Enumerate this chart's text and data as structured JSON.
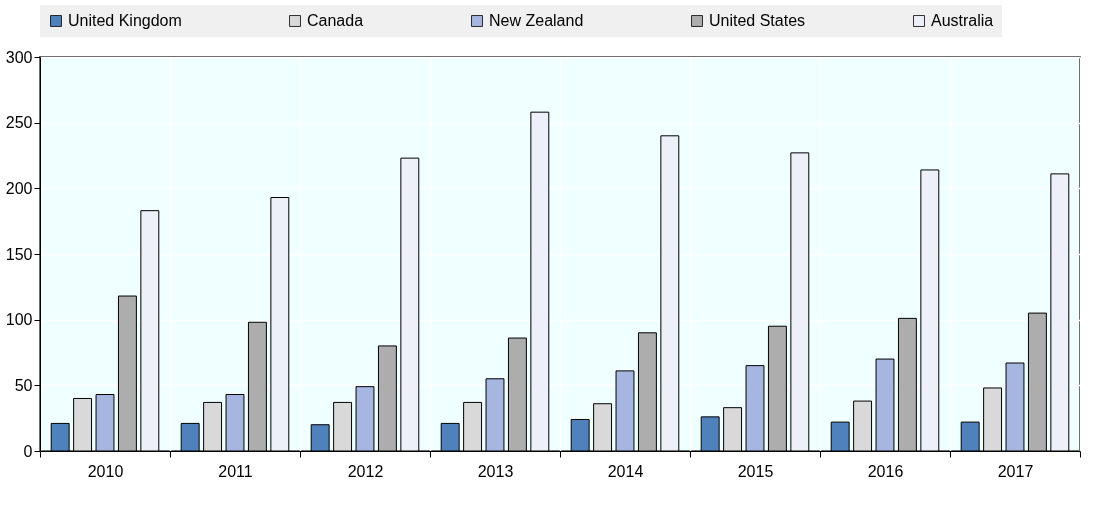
{
  "chart_data": {
    "type": "bar",
    "categories": [
      "2010",
      "2011",
      "2012",
      "2013",
      "2014",
      "2015",
      "2016",
      "2017"
    ],
    "series": [
      {
        "name": "United Kingdom",
        "color": "#4f81bd",
        "values": [
          21,
          21,
          20,
          21,
          24,
          26,
          22,
          22
        ]
      },
      {
        "name": "Canada",
        "color": "#d9d9d9",
        "values": [
          40,
          37,
          37,
          37,
          36,
          33,
          38,
          48
        ]
      },
      {
        "name": "New Zealand",
        "color": "#a6b6e0",
        "values": [
          43,
          43,
          49,
          55,
          61,
          65,
          70,
          67
        ]
      },
      {
        "name": "United States",
        "color": "#adadad",
        "values": [
          118,
          98,
          80,
          86,
          90,
          95,
          101,
          105
        ]
      },
      {
        "name": "Australia",
        "color": "#edf0f8",
        "values": [
          183,
          193,
          223,
          258,
          240,
          227,
          214,
          211
        ]
      }
    ],
    "ylim": [
      0,
      300
    ],
    "yticks": [
      0,
      50,
      100,
      150,
      200,
      250,
      300
    ],
    "grid": true,
    "legend": "top"
  }
}
